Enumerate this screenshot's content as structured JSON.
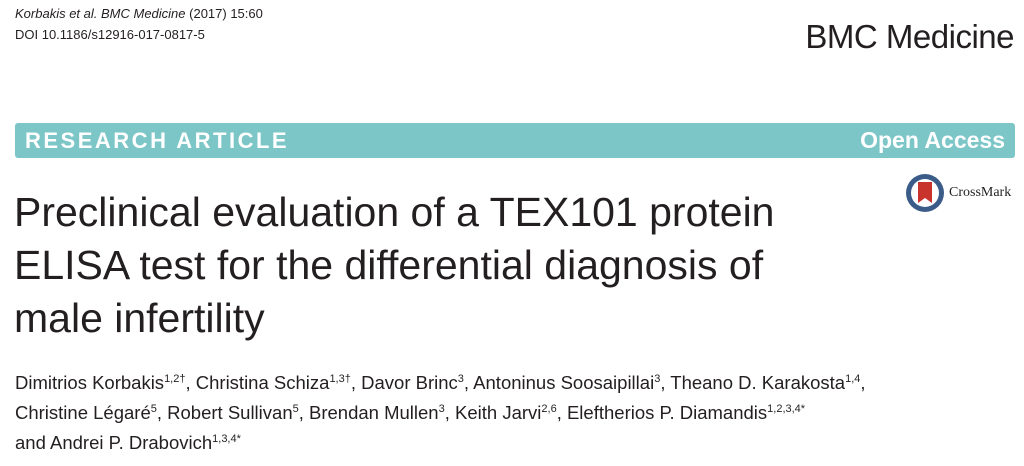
{
  "citation": {
    "journal_ref": "Korbakis et al. BMC Medicine",
    "year_volume": "(2017) 15:60",
    "doi": "DOI 10.1186/s12916-017-0817-5"
  },
  "journal": "BMC Medicine",
  "banner": {
    "type": "RESEARCH ARTICLE",
    "access": "Open Access"
  },
  "crossmark": "CrossMark",
  "title_lines": [
    "Preclinical evaluation of a TEX101 protein",
    "ELISA test for the differential diagnosis of",
    "male infertility"
  ],
  "separator": ",",
  "conjunction": "and",
  "authors": [
    {
      "name": "Dimitrios Korbakis",
      "affil": "1,2†"
    },
    {
      "name": "Christina Schiza",
      "affil": "1,3†"
    },
    {
      "name": "Davor Brinc",
      "affil": "3"
    },
    {
      "name": "Antoninus Soosaipillai",
      "affil": "3"
    },
    {
      "name": "Theano D. Karakosta",
      "affil": "1,4"
    },
    {
      "name": "Christine Légaré",
      "affil": "5"
    },
    {
      "name": "Robert Sullivan",
      "affil": "5"
    },
    {
      "name": "Brendan Mullen",
      "affil": "3"
    },
    {
      "name": "Keith Jarvi",
      "affil": "2,6"
    },
    {
      "name": "Eleftherios P. Diamandis",
      "affil": "1,2,3,4*"
    },
    {
      "name": "Andrei P. Drabovich",
      "affil": "1,3,4*"
    }
  ]
}
